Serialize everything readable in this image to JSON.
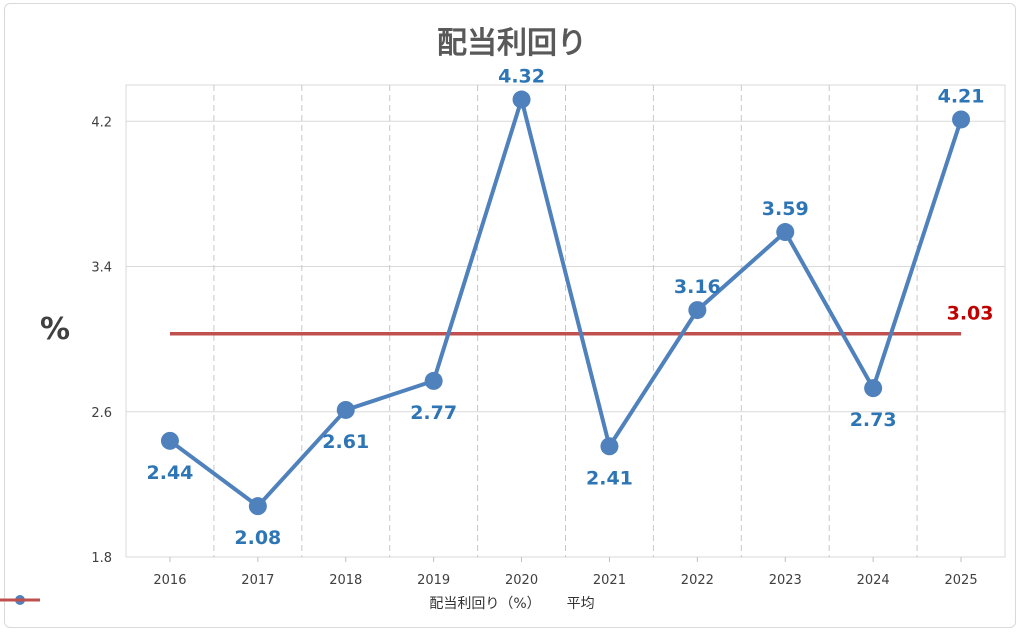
{
  "chart_data": {
    "type": "line",
    "title": "配当利回り",
    "ylabel": "%",
    "xlabel": "",
    "categories": [
      "2016",
      "2017",
      "2018",
      "2019",
      "2020",
      "2021",
      "2022",
      "2023",
      "2024",
      "2025"
    ],
    "ylim": [
      1.8,
      4.4
    ],
    "yticks": [
      "1.8",
      "2.6",
      "3.4",
      "4.2"
    ],
    "series": [
      {
        "name": "配当利回り（%）",
        "values": [
          2.44,
          2.08,
          2.61,
          2.77,
          4.32,
          2.41,
          3.16,
          3.59,
          2.73,
          4.21
        ],
        "labels": [
          "2.44",
          "2.08",
          "2.61",
          "2.77",
          "4.32",
          "2.41",
          "3.16",
          "3.59",
          "2.73",
          "4.21"
        ],
        "label_positions": [
          "below",
          "below",
          "below",
          "below",
          "above",
          "below",
          "above",
          "above",
          "below",
          "above"
        ],
        "color": "#4f81bd",
        "label_color": "#2e75b6"
      },
      {
        "name": "平均",
        "values": [
          3.03,
          3.03,
          3.03,
          3.03,
          3.03,
          3.03,
          3.03,
          3.03,
          3.03,
          3.03
        ],
        "end_label": "3.03",
        "color": "#c0504d",
        "label_color": "#c00000"
      }
    ],
    "grid": {
      "horizontal": true,
      "vertical_dashed": true
    },
    "legend_position": "bottom"
  }
}
